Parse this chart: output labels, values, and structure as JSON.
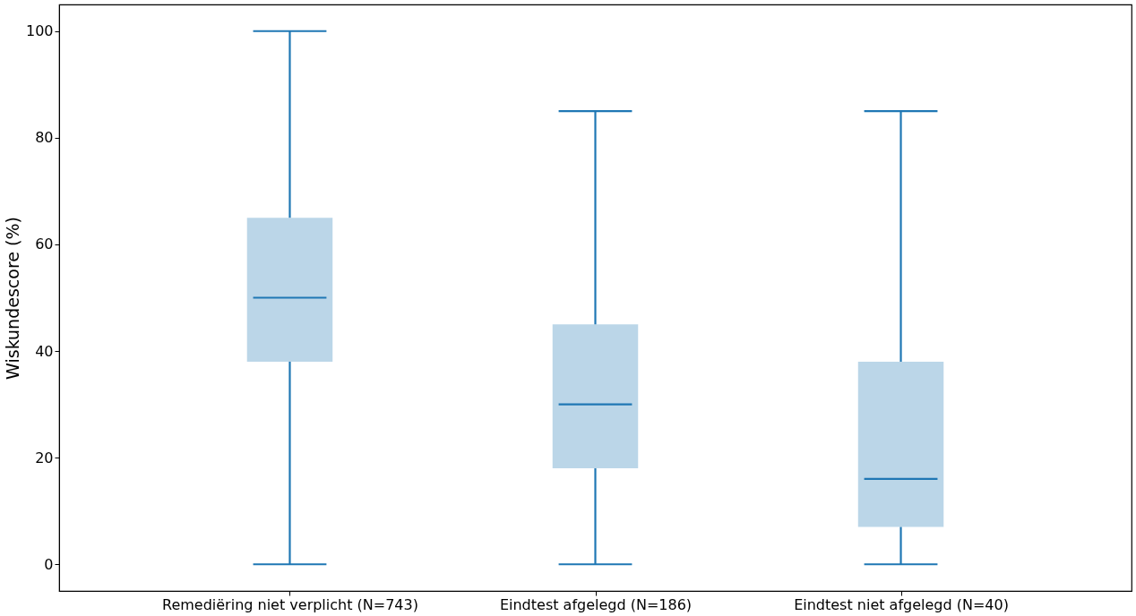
{
  "chart_data": {
    "type": "box",
    "ylabel": "Wiskundescore (%)",
    "categories": [
      "Remediëring niet verplicht (N=743)",
      "Eindtest afgelegd (N=186)",
      "Eindtest niet afgelegd (N=40)"
    ],
    "boxes": [
      {
        "low": 0,
        "q1": 38,
        "median": 50,
        "q3": 65,
        "high": 100
      },
      {
        "low": 0,
        "q1": 18,
        "median": 30,
        "q3": 45,
        "high": 85
      },
      {
        "low": 0,
        "q1": 7,
        "median": 16,
        "q3": 38,
        "high": 85
      }
    ],
    "color": "#1f77b4",
    "ylim": [
      -5,
      105
    ],
    "yticks": [
      0,
      20,
      40,
      60,
      80,
      100
    ],
    "grid": false
  }
}
